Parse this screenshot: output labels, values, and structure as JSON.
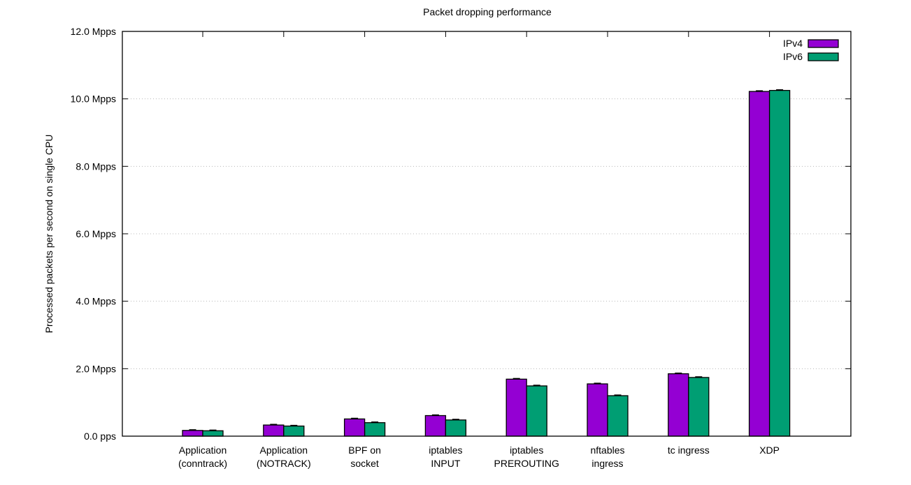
{
  "chart_data": {
    "type": "bar",
    "title": "Packet dropping performance",
    "xlabel": "",
    "ylabel": "Processed packets per second on single CPU",
    "ylim": [
      0,
      12
    ],
    "yticks": [
      "0.0  pps",
      "2.0 Mpps",
      "4.0 Mpps",
      "6.0 Mpps",
      "8.0 Mpps",
      "10.0 Mpps",
      "12.0 Mpps"
    ],
    "ytick_values": [
      0,
      2,
      4,
      6,
      8,
      10,
      12
    ],
    "grid": true,
    "legend_position": "top-right",
    "categories": [
      [
        "Application",
        "(conntrack)"
      ],
      [
        "Application",
        "(NOTRACK)"
      ],
      [
        "BPF on",
        "socket"
      ],
      [
        "iptables",
        "INPUT"
      ],
      [
        "iptables",
        "PREROUTING"
      ],
      [
        "nftables",
        "ingress"
      ],
      [
        "tc ingress"
      ],
      [
        "XDP"
      ]
    ],
    "series": [
      {
        "name": "IPv4",
        "color": "#9400d3",
        "values": [
          0.17,
          0.33,
          0.51,
          0.61,
          1.69,
          1.55,
          1.85,
          10.22
        ]
      },
      {
        "name": "IPv6",
        "color": "#009e73",
        "values": [
          0.16,
          0.3,
          0.4,
          0.48,
          1.49,
          1.2,
          1.74,
          10.25
        ]
      }
    ]
  }
}
